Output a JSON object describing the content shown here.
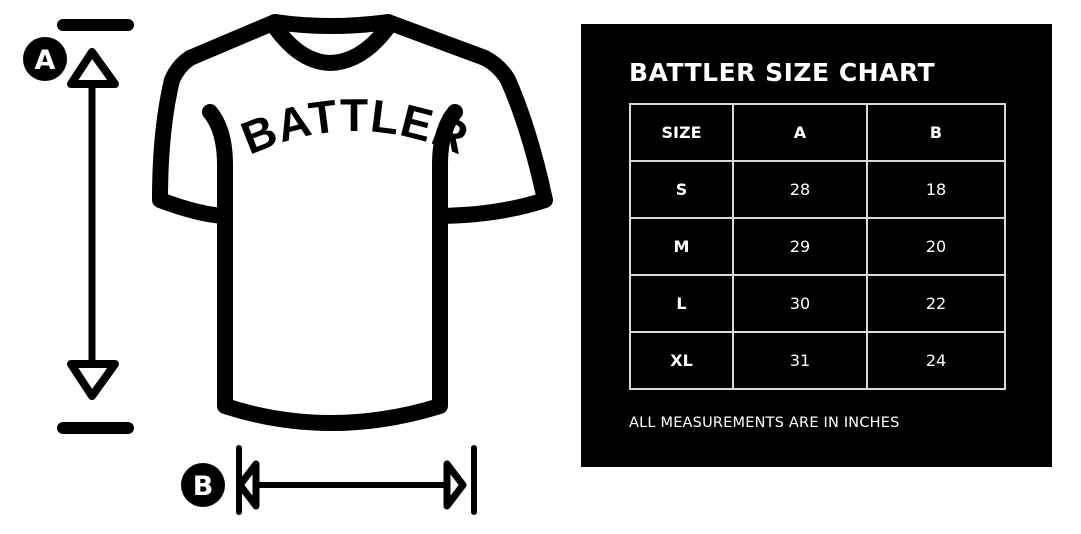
{
  "diagram": {
    "shirt_text": "BATTLER",
    "label_a": "A",
    "label_b": "B"
  },
  "size_chart": {
    "title": "BATTLER SIZE CHART",
    "headers": [
      "SIZE",
      "A",
      "B"
    ],
    "rows": [
      [
        "S",
        "28",
        "18"
      ],
      [
        "M",
        "29",
        "20"
      ],
      [
        "L",
        "30",
        "22"
      ],
      [
        "XL",
        "31",
        "24"
      ]
    ],
    "note": "ALL MEASUREMENTS ARE IN INCHES"
  },
  "colors": {
    "panel": "#000000",
    "text": "#ffffff",
    "grid": "#d9d9d9",
    "ink": "#000000"
  }
}
